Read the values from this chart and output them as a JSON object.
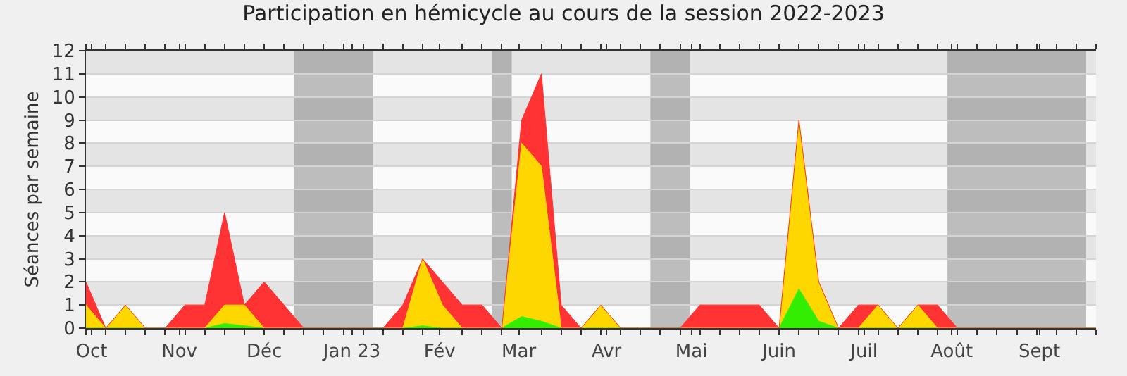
{
  "chart_data": {
    "type": "area",
    "title": "Participation en hémicycle au cours de la session 2022-2023",
    "ylabel": "Séances par semaine",
    "x": [
      "2022-09-29",
      "2022-10-06",
      "2022-10-13",
      "2022-10-20",
      "2022-10-27",
      "2022-11-03",
      "2022-11-10",
      "2022-11-17",
      "2022-11-24",
      "2022-12-01",
      "2022-12-08",
      "2022-12-15",
      "2022-12-22",
      "2022-12-29",
      "2023-01-05",
      "2023-01-12",
      "2023-01-19",
      "2023-01-26",
      "2023-02-02",
      "2023-02-09",
      "2023-02-16",
      "2023-02-23",
      "2023-03-02",
      "2023-03-09",
      "2023-03-16",
      "2023-03-23",
      "2023-03-30",
      "2023-04-06",
      "2023-04-13",
      "2023-04-20",
      "2023-04-27",
      "2023-05-04",
      "2023-05-11",
      "2023-05-18",
      "2023-05-25",
      "2023-06-01",
      "2023-06-08",
      "2023-06-15",
      "2023-06-22",
      "2023-06-29",
      "2023-07-06",
      "2023-07-13",
      "2023-07-20",
      "2023-07-27",
      "2023-08-03",
      "2023-08-10",
      "2023-08-17",
      "2023-08-24",
      "2023-08-31",
      "2023-09-07",
      "2023-09-14",
      "2023-09-21"
    ],
    "stacked": true,
    "series": [
      {
        "color": "#33ee00",
        "values": [
          0,
          0,
          0,
          0,
          0,
          0,
          0,
          0.2,
          0.1,
          0,
          0,
          0,
          0,
          0,
          0,
          0,
          0,
          0.1,
          0,
          0,
          0,
          0,
          0.5,
          0.3,
          0,
          0,
          0,
          0,
          0,
          0,
          0,
          0,
          0,
          0,
          0,
          0,
          1.7,
          0.3,
          0,
          0,
          0,
          0,
          0,
          0,
          0,
          0,
          0,
          0,
          0,
          0,
          0,
          0
        ]
      },
      {
        "color": "#ffd700",
        "values": [
          1,
          0,
          1,
          0,
          0,
          0,
          0,
          0.8,
          0.9,
          0,
          0,
          0,
          0,
          0,
          0,
          0,
          0,
          2.9,
          1,
          0,
          0,
          0,
          7.5,
          6.7,
          0,
          0,
          1,
          0,
          0,
          0,
          0,
          0,
          0,
          0,
          0,
          0,
          7.3,
          1.7,
          0,
          0,
          1,
          0,
          1,
          0,
          0,
          0,
          0,
          0,
          0,
          0,
          0,
          0
        ]
      },
      {
        "color": "#ff3333",
        "values": [
          1,
          0,
          0,
          0,
          0,
          1,
          1,
          4,
          0,
          2,
          1,
          0,
          0,
          0,
          0,
          0,
          1,
          0,
          1,
          1,
          1,
          0,
          1,
          4,
          1,
          0,
          0,
          0,
          0,
          0,
          0,
          1,
          1,
          1,
          1,
          0,
          0,
          0,
          0,
          1,
          0,
          0,
          0,
          1,
          0,
          0,
          0,
          0,
          0,
          0,
          0,
          0
        ]
      }
    ],
    "xlim": [
      "2022-09-29",
      "2023-09-21"
    ],
    "xticks": [
      {
        "value": "2022-09-29",
        "label": null
      },
      {
        "value": "2022-10-01",
        "label": "Oct"
      },
      {
        "value": "2022-10-06",
        "label": null
      },
      {
        "value": "2022-10-13",
        "label": null
      },
      {
        "value": "2022-10-20",
        "label": null
      },
      {
        "value": "2022-10-27",
        "label": null
      },
      {
        "value": "2022-11-01",
        "label": "Nov"
      },
      {
        "value": "2022-11-03",
        "label": null
      },
      {
        "value": "2022-11-10",
        "label": null
      },
      {
        "value": "2022-11-17",
        "label": null
      },
      {
        "value": "2022-11-24",
        "label": null
      },
      {
        "value": "2022-12-01",
        "label": "Déc"
      },
      {
        "value": "2022-12-08",
        "label": null
      },
      {
        "value": "2022-12-15",
        "label": null
      },
      {
        "value": "2022-12-22",
        "label": null
      },
      {
        "value": "2022-12-29",
        "label": null
      },
      {
        "value": "2023-01-01",
        "label": "Jan 23"
      },
      {
        "value": "2023-01-05",
        "label": null
      },
      {
        "value": "2023-01-12",
        "label": null
      },
      {
        "value": "2023-01-19",
        "label": null
      },
      {
        "value": "2023-01-26",
        "label": null
      },
      {
        "value": "2023-02-01",
        "label": "Fév"
      },
      {
        "value": "2023-02-09",
        "label": null
      },
      {
        "value": "2023-02-16",
        "label": null
      },
      {
        "value": "2023-02-23",
        "label": null
      },
      {
        "value": "2023-03-01",
        "label": "Mar"
      },
      {
        "value": "2023-03-09",
        "label": null
      },
      {
        "value": "2023-03-16",
        "label": null
      },
      {
        "value": "2023-03-23",
        "label": null
      },
      {
        "value": "2023-03-30",
        "label": null
      },
      {
        "value": "2023-04-01",
        "label": "Avr"
      },
      {
        "value": "2023-04-06",
        "label": null
      },
      {
        "value": "2023-04-13",
        "label": null
      },
      {
        "value": "2023-04-20",
        "label": null
      },
      {
        "value": "2023-04-27",
        "label": null
      },
      {
        "value": "2023-05-01",
        "label": "Mai"
      },
      {
        "value": "2023-05-04",
        "label": null
      },
      {
        "value": "2023-05-11",
        "label": null
      },
      {
        "value": "2023-05-18",
        "label": null
      },
      {
        "value": "2023-05-25",
        "label": null
      },
      {
        "value": "2023-06-01",
        "label": "Juin"
      },
      {
        "value": "2023-06-08",
        "label": null
      },
      {
        "value": "2023-06-15",
        "label": null
      },
      {
        "value": "2023-06-22",
        "label": null
      },
      {
        "value": "2023-06-29",
        "label": null
      },
      {
        "value": "2023-07-01",
        "label": "Juil"
      },
      {
        "value": "2023-07-06",
        "label": null
      },
      {
        "value": "2023-07-13",
        "label": null
      },
      {
        "value": "2023-07-20",
        "label": null
      },
      {
        "value": "2023-07-27",
        "label": null
      },
      {
        "value": "2023-08-01",
        "label": "Août"
      },
      {
        "value": "2023-08-03",
        "label": null
      },
      {
        "value": "2023-08-10",
        "label": null
      },
      {
        "value": "2023-08-17",
        "label": null
      },
      {
        "value": "2023-08-24",
        "label": null
      },
      {
        "value": "2023-08-31",
        "label": null
      },
      {
        "value": "2023-09-01",
        "label": "Sept"
      },
      {
        "value": "2023-09-07",
        "label": null
      },
      {
        "value": "2023-09-14",
        "label": null
      },
      {
        "value": "2023-09-21",
        "label": null
      }
    ],
    "ylim": [
      0,
      12
    ],
    "yticks": [
      0,
      1,
      2,
      3,
      4,
      5,
      6,
      7,
      8,
      9,
      10,
      11,
      12
    ],
    "grid": "y",
    "bands": [
      {
        "axis": "x",
        "from": "2022-12-11T12:00",
        "to": "2023-01-08T12:00",
        "color": "#808080"
      },
      {
        "axis": "x",
        "from": "2023-02-19T12:00",
        "to": "2023-02-26T12:00",
        "color": "#808080"
      },
      {
        "axis": "x",
        "from": "2023-04-16T12:00",
        "to": "2023-04-30T12:00",
        "color": "#808080"
      },
      {
        "axis": "x",
        "from": "2023-07-30T12:00",
        "to": "2023-09-17T12:00",
        "color": "#808080"
      }
    ]
  }
}
